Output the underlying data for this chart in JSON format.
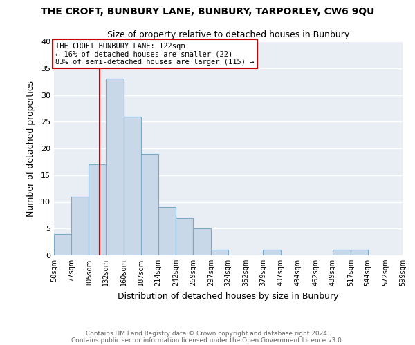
{
  "title": "THE CROFT, BUNBURY LANE, BUNBURY, TARPORLEY, CW6 9QU",
  "subtitle": "Size of property relative to detached houses in Bunbury",
  "xlabel": "Distribution of detached houses by size in Bunbury",
  "ylabel": "Number of detached properties",
  "bin_edges": [
    50,
    77,
    105,
    132,
    160,
    187,
    214,
    242,
    269,
    297,
    324,
    352,
    379,
    407,
    434,
    462,
    489,
    517,
    544,
    572,
    599
  ],
  "bar_heights": [
    4,
    11,
    17,
    33,
    26,
    19,
    9,
    7,
    5,
    1,
    0,
    0,
    1,
    0,
    0,
    0,
    1,
    1,
    0,
    0
  ],
  "bar_color": "#c8d8e8",
  "bar_edgecolor": "#7aaac8",
  "red_line_x": 122,
  "ylim": [
    0,
    40
  ],
  "yticks": [
    0,
    5,
    10,
    15,
    20,
    25,
    30,
    35,
    40
  ],
  "annotation_text": "THE CROFT BUNBURY LANE: 122sqm\n← 16% of detached houses are smaller (22)\n83% of semi-detached houses are larger (115) →",
  "annotation_box_edgecolor": "#cc0000",
  "footer_line1": "Contains HM Land Registry data © Crown copyright and database right 2024.",
  "footer_line2": "Contains public sector information licensed under the Open Government Licence v3.0.",
  "background_color": "#ffffff",
  "plot_bg_color": "#e8eef4",
  "grid_color": "#ffffff"
}
